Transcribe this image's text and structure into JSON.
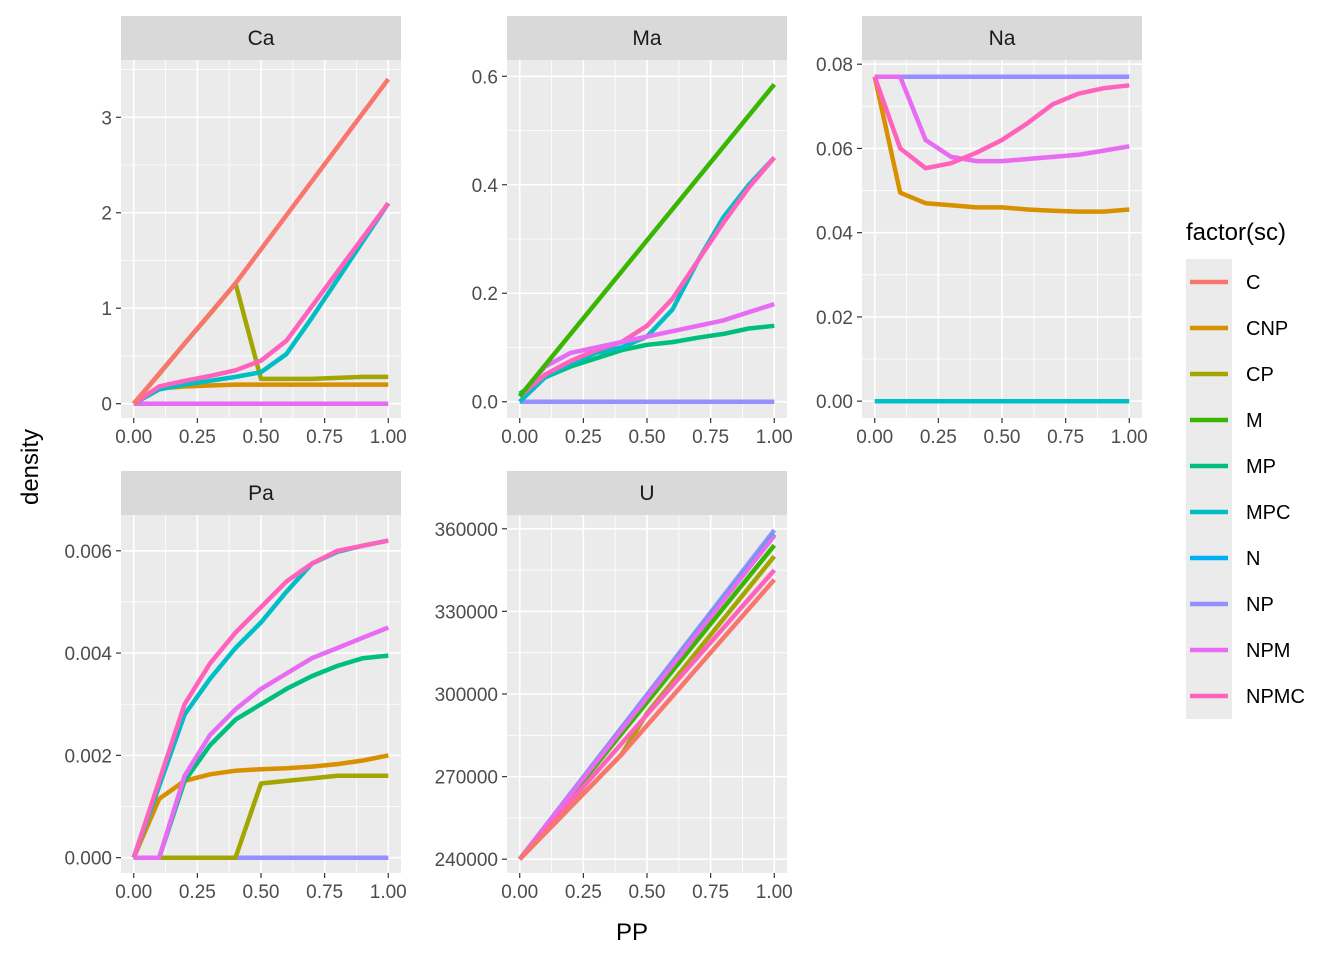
{
  "chart_data": {
    "type": "line",
    "xlabel": "PP",
    "ylabel": "density",
    "legend": {
      "title": "factor(sc)",
      "position": "right",
      "entries": [
        {
          "name": "C",
          "color": "#F8766D"
        },
        {
          "name": "CNP",
          "color": "#D89000"
        },
        {
          "name": "CP",
          "color": "#A3A500"
        },
        {
          "name": "M",
          "color": "#39B600"
        },
        {
          "name": "MP",
          "color": "#00BF7D"
        },
        {
          "name": "MPC",
          "color": "#00BFC4"
        },
        {
          "name": "N",
          "color": "#00B0F6"
        },
        {
          "name": "NP",
          "color": "#9590FF"
        },
        {
          "name": "NPM",
          "color": "#E76BF3"
        },
        {
          "name": "NPMC",
          "color": "#FF62BC"
        }
      ]
    },
    "panels": [
      {
        "title": "Ca",
        "xlim": [
          -0.05,
          1.05
        ],
        "ylim": [
          -0.15,
          3.6
        ],
        "x_ticks": [
          "0.00",
          "0.25",
          "0.50",
          "0.75",
          "1.00"
        ],
        "x_tick_values": [
          0,
          0.25,
          0.5,
          0.75,
          1
        ],
        "y_ticks": [
          "0",
          "1",
          "2",
          "3"
        ],
        "y_tick_values": [
          0,
          1,
          2,
          3
        ],
        "series": [
          {
            "name": "NPM",
            "x": [
              0,
              1
            ],
            "y": [
              0,
              0
            ]
          },
          {
            "name": "CNP",
            "x": [
              0,
              0.1,
              0.2,
              0.3,
              0.4,
              0.5,
              0.6,
              0.7,
              0.8,
              0.9,
              1.0
            ],
            "y": [
              0,
              0.16,
              0.18,
              0.19,
              0.2,
              0.2,
              0.2,
              0.2,
              0.2,
              0.2,
              0.2
            ]
          },
          {
            "name": "CP",
            "x": [
              0,
              0.1,
              0.2,
              0.3,
              0.4,
              0.5,
              0.6,
              0.7,
              0.8,
              0.9,
              1.0
            ],
            "y": [
              0,
              0.31,
              0.63,
              0.94,
              1.26,
              0.26,
              0.26,
              0.26,
              0.27,
              0.28,
              0.28
            ]
          },
          {
            "name": "MPC",
            "x": [
              0,
              0.1,
              0.2,
              0.3,
              0.4,
              0.5,
              0.6,
              0.7,
              0.8,
              0.9,
              1.0
            ],
            "y": [
              0,
              0.15,
              0.2,
              0.24,
              0.28,
              0.33,
              0.52,
              0.9,
              1.3,
              1.7,
              2.1
            ]
          },
          {
            "name": "NPMC",
            "x": [
              0,
              0.1,
              0.2,
              0.3,
              0.4,
              0.5,
              0.6,
              0.7,
              0.8,
              0.9,
              1.0
            ],
            "y": [
              0,
              0.18,
              0.24,
              0.29,
              0.35,
              0.45,
              0.66,
              1.02,
              1.38,
              1.74,
              2.1
            ]
          },
          {
            "name": "C",
            "x": [
              0,
              0.4,
              1.0
            ],
            "y": [
              0,
              1.26,
              3.4
            ]
          }
        ]
      },
      {
        "title": "Ma",
        "xlim": [
          -0.05,
          1.05
        ],
        "ylim": [
          -0.03,
          0.63
        ],
        "x_ticks": [
          "0.00",
          "0.25",
          "0.50",
          "0.75",
          "1.00"
        ],
        "x_tick_values": [
          0,
          0.25,
          0.5,
          0.75,
          1
        ],
        "y_ticks": [
          "0.0",
          "0.2",
          "0.4",
          "0.6"
        ],
        "y_tick_values": [
          0,
          0.2,
          0.4,
          0.6
        ],
        "series": [
          {
            "name": "NP",
            "x": [
              0,
              1
            ],
            "y": [
              0,
              0
            ]
          },
          {
            "name": "MP",
            "x": [
              0,
              0.1,
              0.2,
              0.3,
              0.4,
              0.5,
              0.6,
              0.7,
              0.8,
              0.9,
              1.0
            ],
            "y": [
              0.015,
              0.045,
              0.065,
              0.08,
              0.095,
              0.105,
              0.11,
              0.118,
              0.125,
              0.135,
              0.14
            ]
          },
          {
            "name": "MPC",
            "x": [
              0,
              0.1,
              0.2,
              0.3,
              0.4,
              0.5,
              0.6,
              0.7,
              0.8,
              0.9,
              1.0
            ],
            "y": [
              0,
              0.045,
              0.07,
              0.09,
              0.1,
              0.12,
              0.17,
              0.26,
              0.34,
              0.4,
              0.45
            ]
          },
          {
            "name": "NPMC",
            "x": [
              0,
              0.1,
              0.2,
              0.3,
              0.4,
              0.5,
              0.6,
              0.7,
              0.8,
              0.9,
              1.0
            ],
            "y": [
              0.01,
              0.05,
              0.075,
              0.095,
              0.11,
              0.14,
              0.19,
              0.26,
              0.33,
              0.395,
              0.45
            ]
          },
          {
            "name": "NPM",
            "x": [
              0,
              0.1,
              0.2,
              0.3,
              0.4,
              0.5,
              0.6,
              0.7,
              0.8,
              0.9,
              1.0
            ],
            "y": [
              0.01,
              0.065,
              0.09,
              0.1,
              0.11,
              0.12,
              0.13,
              0.14,
              0.15,
              0.165,
              0.18
            ]
          },
          {
            "name": "M",
            "x": [
              0,
              1.0
            ],
            "y": [
              0.01,
              0.585
            ]
          }
        ]
      },
      {
        "title": "Na",
        "xlim": [
          -0.05,
          1.05
        ],
        "ylim": [
          -0.004,
          0.081
        ],
        "x_ticks": [
          "0.00",
          "0.25",
          "0.50",
          "0.75",
          "1.00"
        ],
        "x_tick_values": [
          0,
          0.25,
          0.5,
          0.75,
          1
        ],
        "y_ticks": [
          "0.00",
          "0.02",
          "0.04",
          "0.06",
          "0.08"
        ],
        "y_tick_values": [
          0,
          0.02,
          0.04,
          0.06,
          0.08
        ],
        "series": [
          {
            "name": "MPC",
            "x": [
              0,
              1
            ],
            "y": [
              0,
              0
            ]
          },
          {
            "name": "NP",
            "x": [
              0,
              1
            ],
            "y": [
              0.077,
              0.077
            ]
          },
          {
            "name": "CNP",
            "x": [
              0,
              0.1,
              0.2,
              0.3,
              0.4,
              0.5,
              0.6,
              0.7,
              0.8,
              0.9,
              1.0
            ],
            "y": [
              0.077,
              0.0495,
              0.047,
              0.0465,
              0.046,
              0.046,
              0.0455,
              0.0452,
              0.045,
              0.045,
              0.0455
            ]
          },
          {
            "name": "NPM",
            "x": [
              0,
              0.1,
              0.2,
              0.3,
              0.4,
              0.5,
              0.6,
              0.7,
              0.8,
              0.9,
              1.0
            ],
            "y": [
              0.077,
              0.077,
              0.062,
              0.058,
              0.057,
              0.057,
              0.0575,
              0.058,
              0.0585,
              0.0595,
              0.0605
            ]
          },
          {
            "name": "NPMC",
            "x": [
              0,
              0.1,
              0.2,
              0.3,
              0.4,
              0.5,
              0.6,
              0.7,
              0.8,
              0.9,
              1.0
            ],
            "y": [
              0.077,
              0.06,
              0.0553,
              0.0565,
              0.059,
              0.062,
              0.066,
              0.0705,
              0.073,
              0.0743,
              0.075
            ]
          }
        ]
      },
      {
        "title": "Pa",
        "xlim": [
          -0.05,
          1.05
        ],
        "ylim": [
          -0.0003,
          0.0067
        ],
        "x_ticks": [
          "0.00",
          "0.25",
          "0.50",
          "0.75",
          "1.00"
        ],
        "x_tick_values": [
          0,
          0.25,
          0.5,
          0.75,
          1
        ],
        "y_ticks": [
          "0.000",
          "0.002",
          "0.004",
          "0.006"
        ],
        "y_tick_values": [
          0,
          0.002,
          0.004,
          0.006
        ],
        "series": [
          {
            "name": "NP",
            "x": [
              0,
              1
            ],
            "y": [
              0,
              0
            ]
          },
          {
            "name": "CP",
            "x": [
              0,
              0.4,
              0.5,
              0.6,
              0.7,
              0.8,
              0.9,
              1.0
            ],
            "y": [
              0,
              0,
              0.00145,
              0.0015,
              0.00155,
              0.0016,
              0.0016,
              0.0016
            ]
          },
          {
            "name": "CNP",
            "x": [
              0,
              0.1,
              0.2,
              0.3,
              0.4,
              0.5,
              0.6,
              0.7,
              0.8,
              0.9,
              1.0
            ],
            "y": [
              0,
              0.00115,
              0.0015,
              0.00163,
              0.0017,
              0.00173,
              0.00175,
              0.00178,
              0.00183,
              0.0019,
              0.002
            ]
          },
          {
            "name": "MP",
            "x": [
              0,
              0.1,
              0.2,
              0.3,
              0.4,
              0.5,
              0.6,
              0.7,
              0.8,
              0.9,
              1.0
            ],
            "y": [
              0,
              0,
              0.0015,
              0.0022,
              0.0027,
              0.003,
              0.0033,
              0.00355,
              0.00375,
              0.0039,
              0.00395
            ]
          },
          {
            "name": "NPM",
            "x": [
              0,
              0.1,
              0.2,
              0.3,
              0.4,
              0.5,
              0.6,
              0.7,
              0.8,
              0.9,
              1.0
            ],
            "y": [
              0,
              0,
              0.0016,
              0.0024,
              0.0029,
              0.0033,
              0.0036,
              0.0039,
              0.0041,
              0.0043,
              0.0045
            ]
          },
          {
            "name": "MPC",
            "x": [
              0,
              0.1,
              0.2,
              0.3,
              0.4,
              0.5,
              0.6,
              0.7,
              0.8,
              0.9,
              1.0
            ],
            "y": [
              0,
              0.0014,
              0.0028,
              0.0035,
              0.0041,
              0.0046,
              0.0052,
              0.00575,
              0.00598,
              0.0061,
              0.0062
            ]
          },
          {
            "name": "NPMC",
            "x": [
              0,
              0.1,
              0.2,
              0.3,
              0.4,
              0.5,
              0.6,
              0.7,
              0.8,
              0.9,
              1.0
            ],
            "y": [
              0,
              0.0015,
              0.003,
              0.0038,
              0.0044,
              0.0049,
              0.0054,
              0.00575,
              0.006,
              0.0061,
              0.0062
            ]
          }
        ]
      },
      {
        "title": "U",
        "xlim": [
          -0.05,
          1.05
        ],
        "ylim": [
          235000,
          365000
        ],
        "x_ticks": [
          "0.00",
          "0.25",
          "0.50",
          "0.75",
          "1.00"
        ],
        "x_tick_values": [
          0,
          0.25,
          0.5,
          0.75,
          1
        ],
        "y_ticks": [
          "240000",
          "270000",
          "300000",
          "330000",
          "360000"
        ],
        "y_tick_values": [
          240000,
          270000,
          300000,
          330000,
          360000
        ],
        "series": [
          {
            "name": "CP",
            "x": [
              0,
              0.4,
              0.5,
              1.0
            ],
            "y": [
              240000,
              278000,
              293000,
              350000
            ]
          },
          {
            "name": "M",
            "x": [
              0,
              1.0
            ],
            "y": [
              240000,
              354000
            ]
          },
          {
            "name": "NP",
            "x": [
              0,
              1.0
            ],
            "y": [
              240000,
              359500
            ]
          },
          {
            "name": "MPC",
            "x": [
              0,
              1.0
            ],
            "y": [
              240000,
              358000
            ]
          },
          {
            "name": "NPM",
            "x": [
              0,
              1.0
            ],
            "y": [
              240000,
              357500
            ]
          },
          {
            "name": "NPMC",
            "x": [
              0,
              1.0
            ],
            "y": [
              240000,
              345000
            ]
          },
          {
            "name": "C",
            "x": [
              0,
              0.4,
              1.0
            ],
            "y": [
              240000,
              278000,
              341500
            ]
          }
        ]
      }
    ]
  }
}
